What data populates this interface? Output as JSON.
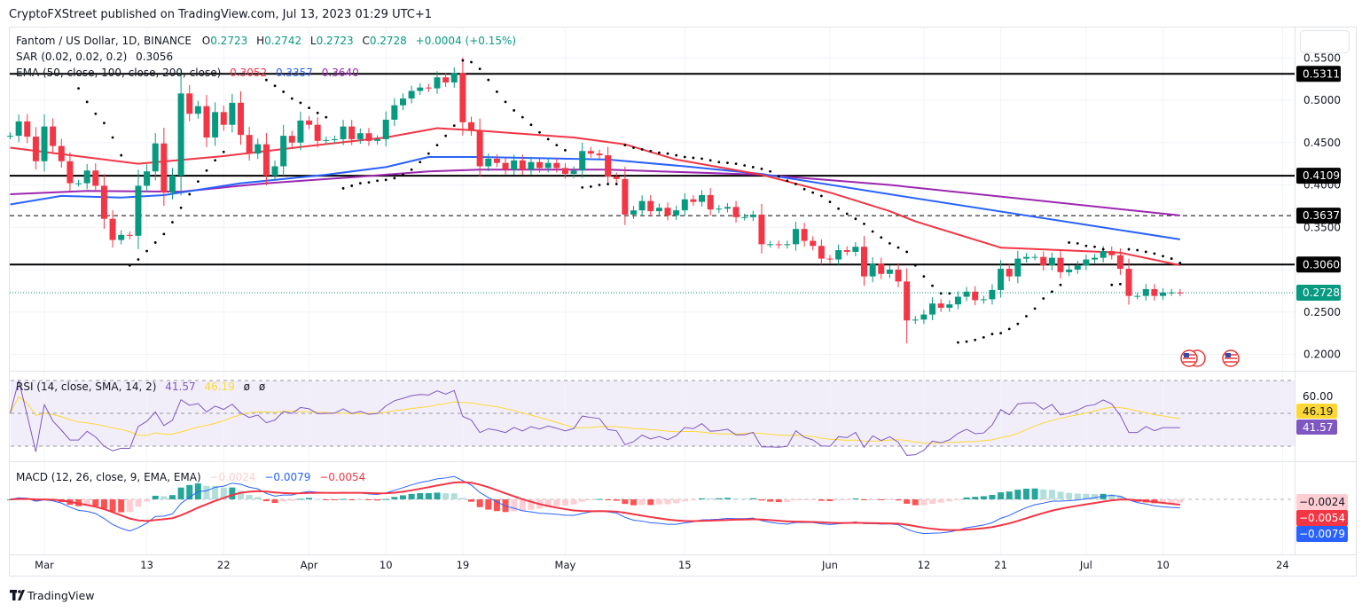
{
  "header": {
    "published": "CryptoFXStreet published on TradingView.com, Jul 13, 2023 01:29 UTC+1"
  },
  "legend": {
    "symbol": "Fantom / US Dollar, 1D, BINANCE",
    "o_label": "O",
    "o": "0.2723",
    "h_label": "H",
    "h": "0.2742",
    "l_label": "L",
    "l": "0.2723",
    "c_label": "C",
    "c": "0.2728",
    "change": "+0.0004 (+0.15%)",
    "sar_title": "SAR (0.02, 0.02, 0.2)",
    "sar_value": "0.3056",
    "ema_title": "EMA (50, close, 100, close, 200, close)",
    "ema50": "0.3052",
    "ema100": "0.3357",
    "ema200": "0.3640"
  },
  "rsi_legend": {
    "title": "RSI (14, close, SMA, 14, 2)",
    "rsi": "41.57",
    "sma": "46.19",
    "extra1": "ø",
    "extra2": "ø"
  },
  "macd_legend": {
    "title": "MACD (12, 26, close, 9, EMA, EMA)",
    "hist": "−0.0024",
    "macd": "−0.0079",
    "signal": "−0.0054"
  },
  "price_axis": {
    "ticks": [
      "0.5500",
      "0.5000",
      "0.4500",
      "0.4000",
      "0.3500",
      "0.2500",
      "0.2000"
    ],
    "levels": [
      {
        "label": "0.5311",
        "value": 0.5311,
        "style": "solid"
      },
      {
        "label": "0.4109",
        "value": 0.4109,
        "style": "solid"
      },
      {
        "label": "0.3637",
        "value": 0.3637,
        "style": "dashed"
      },
      {
        "label": "0.3060",
        "value": 0.306,
        "style": "solid"
      }
    ],
    "last_price": {
      "label": "0.2728",
      "value": 0.2728
    }
  },
  "rsi_axis": {
    "tick": "60.00",
    "sma_badge": "46.19",
    "rsi_badge": "41.57"
  },
  "macd_axis": {
    "hist_badge": "−0.0024",
    "signal_badge": "−0.0054",
    "macd_badge": "−0.0079"
  },
  "time_axis": [
    {
      "label": "Mar",
      "date": "03-01"
    },
    {
      "label": "13",
      "date": "03-13"
    },
    {
      "label": "22",
      "date": "03-22"
    },
    {
      "label": "Apr",
      "date": "04-01"
    },
    {
      "label": "10",
      "date": "04-10"
    },
    {
      "label": "19",
      "date": "04-19"
    },
    {
      "label": "May",
      "date": "05-01"
    },
    {
      "label": "15",
      "date": "05-15"
    },
    {
      "label": "Jun",
      "date": "06-01"
    },
    {
      "label": "12",
      "date": "06-12"
    },
    {
      "label": "21",
      "date": "06-21"
    },
    {
      "label": "Jul",
      "date": "07-01"
    },
    {
      "label": "10",
      "date": "07-10"
    },
    {
      "label": "24",
      "date": "07-24"
    }
  ],
  "footer": {
    "brand": "TradingView"
  },
  "colors": {
    "up": "#089981",
    "down": "#f23645",
    "ema50": "#f23645",
    "ema100": "#2962ff",
    "ema200": "#9c27b0",
    "rsi": "#7e57c2",
    "rsi_sma": "#fdd835",
    "macd": "#2962ff",
    "signal": "#f23645"
  },
  "chart_data": {
    "type": "candlestick",
    "title": "Fantom / US Dollar, 1D, BINANCE",
    "ylim": [
      0.2,
      0.55
    ],
    "year": 2023,
    "grid": true,
    "candles_close": [
      [
        "02-25",
        0.458
      ],
      [
        "02-26",
        0.475
      ],
      [
        "02-27",
        0.457
      ],
      [
        "02-28",
        0.428
      ],
      [
        "03-01",
        0.469
      ],
      [
        "03-02",
        0.446
      ],
      [
        "03-03",
        0.428
      ],
      [
        "03-04",
        0.402
      ],
      [
        "03-05",
        0.402
      ],
      [
        "03-06",
        0.417
      ],
      [
        "03-07",
        0.399
      ],
      [
        "03-08",
        0.36
      ],
      [
        "03-09",
        0.335
      ],
      [
        "03-10",
        0.341
      ],
      [
        "03-11",
        0.34
      ],
      [
        "03-12",
        0.399
      ],
      [
        "03-13",
        0.416
      ],
      [
        "03-14",
        0.449
      ],
      [
        "03-15",
        0.391
      ],
      [
        "03-16",
        0.411
      ],
      [
        "03-17",
        0.508
      ],
      [
        "03-18",
        0.484
      ],
      [
        "03-19",
        0.493
      ],
      [
        "03-20",
        0.456
      ],
      [
        "03-21",
        0.486
      ],
      [
        "03-22",
        0.471
      ],
      [
        "03-23",
        0.497
      ],
      [
        "03-24",
        0.459
      ],
      [
        "03-25",
        0.437
      ],
      [
        "03-26",
        0.448
      ],
      [
        "03-27",
        0.411
      ],
      [
        "03-28",
        0.422
      ],
      [
        "03-29",
        0.458
      ],
      [
        "03-30",
        0.45
      ],
      [
        "03-31",
        0.476
      ],
      [
        "04-01",
        0.471
      ],
      [
        "04-02",
        0.452
      ],
      [
        "04-03",
        0.453
      ],
      [
        "04-04",
        0.454
      ],
      [
        "04-05",
        0.469
      ],
      [
        "04-06",
        0.454
      ],
      [
        "04-07",
        0.461
      ],
      [
        "04-08",
        0.452
      ],
      [
        "04-09",
        0.454
      ],
      [
        "04-10",
        0.477
      ],
      [
        "04-11",
        0.494
      ],
      [
        "04-12",
        0.502
      ],
      [
        "04-13",
        0.511
      ],
      [
        "04-14",
        0.515
      ],
      [
        "04-15",
        0.514
      ],
      [
        "04-16",
        0.527
      ],
      [
        "04-17",
        0.521
      ],
      [
        "04-18",
        0.532
      ],
      [
        "04-19",
        0.474
      ],
      [
        "04-20",
        0.464
      ],
      [
        "04-21",
        0.422
      ],
      [
        "04-22",
        0.431
      ],
      [
        "04-23",
        0.426
      ],
      [
        "04-24",
        0.418
      ],
      [
        "04-25",
        0.429
      ],
      [
        "04-26",
        0.418
      ],
      [
        "04-27",
        0.427
      ],
      [
        "04-28",
        0.42
      ],
      [
        "04-29",
        0.426
      ],
      [
        "04-30",
        0.42
      ],
      [
        "05-01",
        0.413
      ],
      [
        "05-02",
        0.417
      ],
      [
        "05-03",
        0.44
      ],
      [
        "05-04",
        0.437
      ],
      [
        "05-05",
        0.435
      ],
      [
        "05-06",
        0.41
      ],
      [
        "05-07",
        0.407
      ],
      [
        "05-08",
        0.365
      ],
      [
        "05-09",
        0.37
      ],
      [
        "05-10",
        0.381
      ],
      [
        "05-11",
        0.369
      ],
      [
        "05-12",
        0.373
      ],
      [
        "05-13",
        0.364
      ],
      [
        "05-14",
        0.37
      ],
      [
        "05-15",
        0.383
      ],
      [
        "05-16",
        0.38
      ],
      [
        "05-17",
        0.388
      ],
      [
        "05-18",
        0.371
      ],
      [
        "05-19",
        0.372
      ],
      [
        "05-20",
        0.374
      ],
      [
        "05-21",
        0.362
      ],
      [
        "05-22",
        0.362
      ],
      [
        "05-23",
        0.365
      ],
      [
        "05-24",
        0.33
      ],
      [
        "05-25",
        0.33
      ],
      [
        "05-26",
        0.329
      ],
      [
        "05-27",
        0.33
      ],
      [
        "05-28",
        0.348
      ],
      [
        "05-29",
        0.334
      ],
      [
        "05-30",
        0.328
      ],
      [
        "05-31",
        0.313
      ],
      [
        "06-01",
        0.312
      ],
      [
        "06-02",
        0.323
      ],
      [
        "06-03",
        0.321
      ],
      [
        "06-04",
        0.327
      ],
      [
        "06-05",
        0.292
      ],
      [
        "06-06",
        0.307
      ],
      [
        "06-07",
        0.295
      ],
      [
        "06-08",
        0.3
      ],
      [
        "06-09",
        0.286
      ],
      [
        "06-10",
        0.24
      ],
      [
        "06-11",
        0.241
      ],
      [
        "06-12",
        0.247
      ],
      [
        "06-13",
        0.26
      ],
      [
        "06-14",
        0.255
      ],
      [
        "06-15",
        0.259
      ],
      [
        "06-16",
        0.268
      ],
      [
        "06-17",
        0.274
      ],
      [
        "06-18",
        0.264
      ],
      [
        "06-19",
        0.265
      ],
      [
        "06-20",
        0.276
      ],
      [
        "06-21",
        0.301
      ],
      [
        "06-22",
        0.292
      ],
      [
        "06-23",
        0.313
      ],
      [
        "06-24",
        0.315
      ],
      [
        "06-25",
        0.315
      ],
      [
        "06-26",
        0.305
      ],
      [
        "06-27",
        0.314
      ],
      [
        "06-28",
        0.297
      ],
      [
        "06-29",
        0.3
      ],
      [
        "06-30",
        0.305
      ],
      [
        "07-01",
        0.312
      ],
      [
        "07-02",
        0.314
      ],
      [
        "07-03",
        0.322
      ],
      [
        "07-04",
        0.317
      ],
      [
        "07-05",
        0.301
      ],
      [
        "07-06",
        0.269
      ],
      [
        "07-07",
        0.269
      ],
      [
        "07-08",
        0.277
      ],
      [
        "07-09",
        0.269
      ],
      [
        "07-10",
        0.273
      ],
      [
        "07-11",
        0.273
      ],
      [
        "07-12",
        0.2728
      ]
    ],
    "sar": [
      null,
      null,
      null,
      null,
      null,
      null,
      null,
      null,
      0.514,
      0.498,
      0.484,
      0.473,
      0.456,
      0.435,
      0.305,
      0.312,
      0.322,
      0.332,
      0.342,
      0.356,
      0.373,
      0.389,
      0.404,
      0.417,
      0.429,
      0.439,
      null,
      null,
      null,
      null,
      0.524,
      0.517,
      0.51,
      0.502,
      0.497,
      0.491,
      0.485,
      0.48,
      null,
      0.396,
      0.399,
      0.402,
      0.403,
      0.405,
      0.406,
      0.408,
      0.412,
      0.418,
      0.427,
      0.437,
      0.447,
      0.458,
      0.47,
      0.547,
      0.545,
      0.537,
      0.524,
      0.51,
      0.498,
      0.488,
      0.48,
      0.471,
      0.462,
      0.454,
      0.447,
      0.441,
      null,
      0.397,
      0.398,
      0.4,
      0.401,
      0.401,
      0.447,
      0.444,
      0.442,
      0.44,
      0.438,
      0.437,
      0.435,
      0.433,
      0.432,
      0.431,
      0.429,
      0.427,
      0.426,
      0.425,
      0.423,
      0.421,
      0.419,
      0.416,
      0.41,
      0.405,
      0.401,
      0.395,
      0.391,
      0.387,
      0.38,
      0.372,
      0.366,
      0.36,
      0.354,
      0.345,
      0.338,
      0.331,
      0.326,
      0.321,
      0.305,
      0.292,
      0.281,
      0.272,
      0.272,
      0.214,
      0.215,
      0.217,
      0.22,
      0.224,
      0.225,
      0.23,
      0.236,
      0.245,
      0.254,
      0.266,
      0.274,
      0.282,
      0.332,
      0.331,
      0.328,
      0.327,
      0.324,
      0.282,
      0.283,
      0.324,
      0.323,
      0.321,
      0.319,
      0.316,
      0.313,
      0.308
    ],
    "ema50": [
      [
        "02-25",
        0.444
      ],
      [
        "03-12",
        0.425
      ],
      [
        "03-22",
        0.434
      ],
      [
        "04-01",
        0.446
      ],
      [
        "04-10",
        0.456
      ],
      [
        "04-16",
        0.467
      ],
      [
        "04-21",
        0.464
      ],
      [
        "05-02",
        0.456
      ],
      [
        "05-08",
        0.448
      ],
      [
        "05-14",
        0.43
      ],
      [
        "05-24",
        0.412
      ],
      [
        "06-01",
        0.391
      ],
      [
        "06-08",
        0.369
      ],
      [
        "06-11",
        0.357
      ],
      [
        "06-21",
        0.326
      ],
      [
        "07-05",
        0.32
      ],
      [
        "07-12",
        0.3052
      ]
    ],
    "ema100": [
      [
        "02-25",
        0.377
      ],
      [
        "03-03",
        0.387
      ],
      [
        "03-10",
        0.385
      ],
      [
        "03-15",
        0.388
      ],
      [
        "03-24",
        0.402
      ],
      [
        "04-03",
        0.412
      ],
      [
        "04-10",
        0.421
      ],
      [
        "04-15",
        0.433
      ],
      [
        "04-21",
        0.433
      ],
      [
        "05-06",
        0.43
      ],
      [
        "05-15",
        0.422
      ],
      [
        "05-24",
        0.413
      ],
      [
        "06-08",
        0.389
      ],
      [
        "07-12",
        0.3357
      ]
    ],
    "ema200": [
      [
        "02-25",
        0.389
      ],
      [
        "03-06",
        0.393
      ],
      [
        "03-17",
        0.392
      ],
      [
        "03-27",
        0.402
      ],
      [
        "04-06",
        0.409
      ],
      [
        "04-15",
        0.416
      ],
      [
        "04-21",
        0.418
      ],
      [
        "05-06",
        0.418
      ],
      [
        "05-24",
        0.412
      ],
      [
        "06-08",
        0.4
      ],
      [
        "07-12",
        0.364
      ]
    ],
    "rsi_bands": [
      30,
      50,
      70
    ]
  }
}
